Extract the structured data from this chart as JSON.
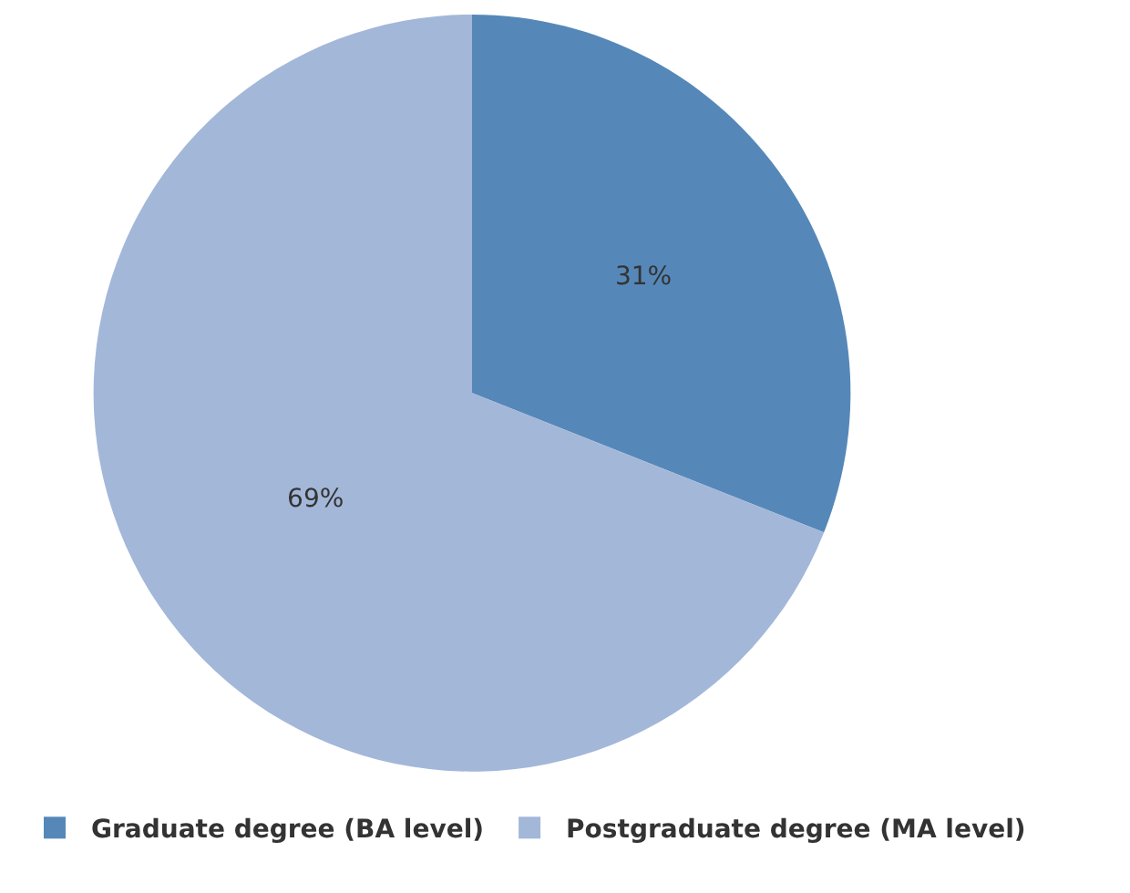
{
  "chart_data": {
    "type": "pie",
    "categories": [
      "Graduate degree (BA level)",
      "Postgraduate degree (MA level)"
    ],
    "values": [
      31,
      69
    ],
    "colors": [
      "#5588b8",
      "#a3b7d9"
    ],
    "value_labels": [
      "31%",
      "69%"
    ],
    "legend": "bottom"
  }
}
